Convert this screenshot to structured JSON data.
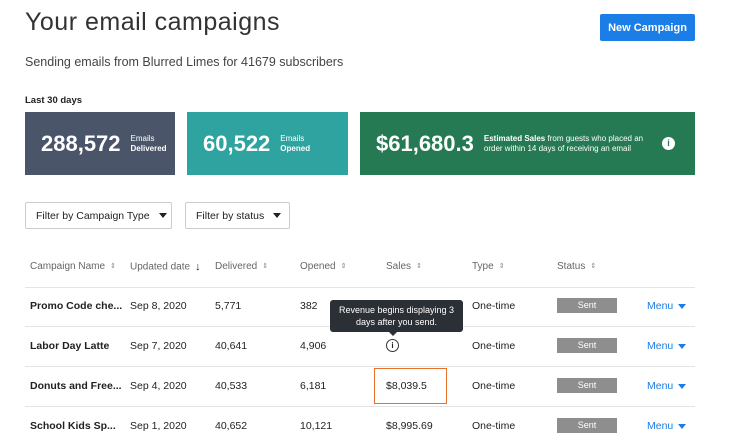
{
  "header": {
    "title": "Your email campaigns",
    "button": "New Campaign",
    "subtitle": "Sending emails from Blurred Limes for 41679 subscribers"
  },
  "period": "Last 30 days",
  "cards": [
    {
      "value": "288,572",
      "label_1": "Emails",
      "label_2": "Delivered"
    },
    {
      "value": "60,522",
      "label_1": "Emails",
      "label_2": "Opened"
    },
    {
      "value": "$61,680.3",
      "label_bold": "Estimated Sales",
      "label_rest": "from guests who placed an order within 14 days of receiving an email"
    }
  ],
  "filters": [
    "Filter by Campaign Type",
    "Filter by status"
  ],
  "table": {
    "columns": [
      "Campaign Name",
      "Updated date",
      "Delivered",
      "Opened",
      "Sales",
      "Type",
      "Status"
    ],
    "rows": [
      [
        "Promo Code che...",
        "Sep 8, 2020",
        "5,771",
        "382",
        null,
        "One-time",
        "Sent",
        "Menu"
      ],
      [
        "Labor Day Latte",
        "Sep 7, 2020",
        "40,641",
        "4,906",
        null,
        "One-time",
        "Sent",
        "Menu"
      ],
      [
        "Donuts and Free...",
        "Sep 4, 2020",
        "40,533",
        "6,181",
        "$8,039.5",
        "One-time",
        "Sent",
        "Menu"
      ],
      [
        "School Kids Sp...",
        "Sep 1, 2020",
        "40,652",
        "10,121",
        "$8,995.69",
        "One-time",
        "Sent",
        "Menu"
      ]
    ]
  },
  "tooltip": "Revenue begins displaying 3 days after you send."
}
